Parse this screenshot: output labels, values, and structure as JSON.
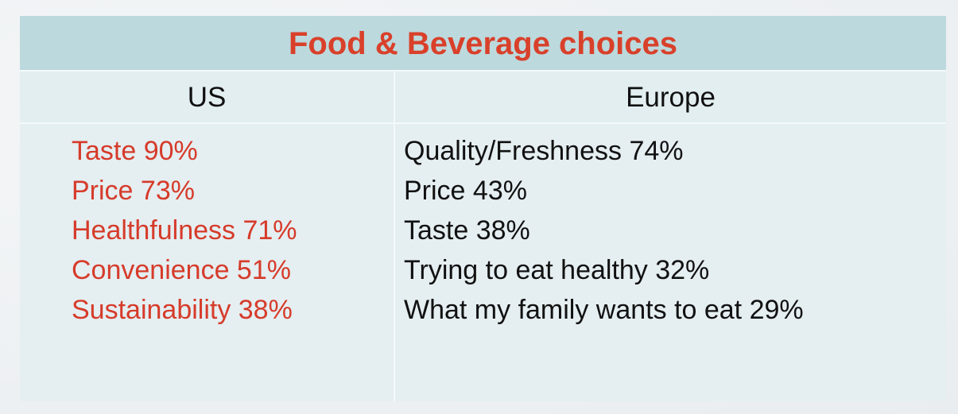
{
  "table": {
    "title": "Food & Beverage choices",
    "columns": [
      "US",
      "Europe"
    ],
    "rows": [
      [
        "Taste 90%",
        "Quality/Freshness 74%"
      ],
      [
        "Price 73%",
        "Price 43%"
      ],
      [
        "Healthfulness 71%",
        "Taste 38%"
      ],
      [
        "Convenience 51%",
        "Trying to eat healthy 32%"
      ],
      [
        "Sustainability 38%",
        "What my family wants to eat 29%"
      ]
    ]
  }
}
